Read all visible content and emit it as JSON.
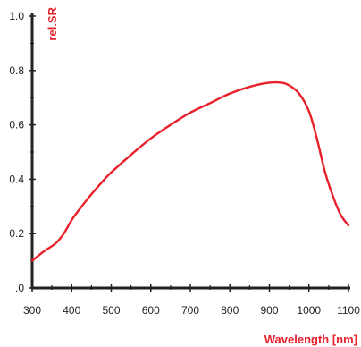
{
  "chart_data": {
    "type": "line",
    "xlabel": "Wavelength [nm]",
    "ylabel": "rel.SR",
    "xlim": [
      300,
      1100
    ],
    "ylim": [
      0,
      1.0
    ],
    "x_ticks": [
      300,
      400,
      500,
      600,
      700,
      800,
      900,
      1000,
      1100
    ],
    "x_tick_labels": [
      "300",
      "400",
      "500",
      "600",
      "700",
      "800",
      "900",
      "1000",
      "1100"
    ],
    "y_ticks": [
      0,
      0.2,
      0.4,
      0.6,
      0.8,
      1.0
    ],
    "y_tick_labels": [
      ".0",
      "0.2",
      "0.4",
      "0.6",
      "0.8",
      "1.0"
    ],
    "grid": false,
    "legend": "none",
    "series": [
      {
        "color": "#e8202a",
        "x": [
          300,
          330,
          360,
          380,
          400,
          420,
          450,
          480,
          500,
          550,
          600,
          650,
          700,
          750,
          800,
          850,
          900,
          930,
          950,
          975,
          1000,
          1020,
          1040,
          1060,
          1080,
          1100
        ],
        "y": [
          0.1,
          0.135,
          0.165,
          0.2,
          0.25,
          0.29,
          0.345,
          0.395,
          0.425,
          0.49,
          0.55,
          0.6,
          0.645,
          0.68,
          0.715,
          0.74,
          0.755,
          0.755,
          0.745,
          0.715,
          0.65,
          0.55,
          0.43,
          0.34,
          0.27,
          0.23
        ]
      }
    ]
  }
}
